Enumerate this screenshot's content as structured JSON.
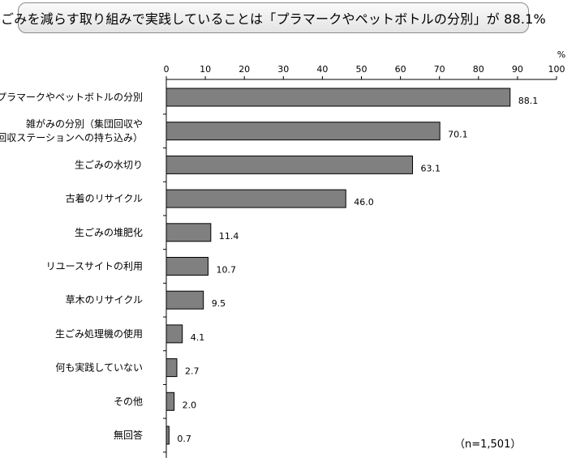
{
  "title": "ごみを減らす取り組みで実践していることは「プラマークやペットボトルの分別」が 88.1%",
  "unit": "%",
  "note": "（n=1,501）",
  "colors": {
    "bar": "#808080",
    "bar_stroke": "#000000"
  },
  "chart_data": {
    "type": "bar",
    "orientation": "horizontal",
    "title": "ごみを減らす取り組みで実践していることは「プラマークやペットボトルの分別」が 88.1%",
    "xlabel": "%",
    "ylabel": "",
    "xlim": [
      0,
      100
    ],
    "ticks": [
      0,
      10,
      20,
      30,
      40,
      50,
      60,
      70,
      80,
      90,
      100
    ],
    "categories": [
      [
        "プラマークやペットボトルの分別"
      ],
      [
        "雑がみの分別（集団回収や",
        "回収ステーションへの持ち込み）"
      ],
      [
        "生ごみの水切り"
      ],
      [
        "古着のリサイクル"
      ],
      [
        "生ごみの堆肥化"
      ],
      [
        "リユースサイトの利用"
      ],
      [
        "草木のリサイクル"
      ],
      [
        "生ごみ処理機の使用"
      ],
      [
        "何も実践していない"
      ],
      [
        "その他"
      ],
      [
        "無回答"
      ]
    ],
    "values": [
      88.1,
      70.1,
      63.1,
      46.0,
      11.4,
      10.7,
      9.5,
      4.1,
      2.7,
      2.0,
      0.7
    ],
    "value_labels": [
      "88.1",
      "70.1",
      "63.1",
      "46.0",
      "11.4",
      "10.7",
      "9.5",
      "4.1",
      "2.7",
      "2.0",
      "0.7"
    ],
    "grid": false,
    "legend": "none"
  }
}
